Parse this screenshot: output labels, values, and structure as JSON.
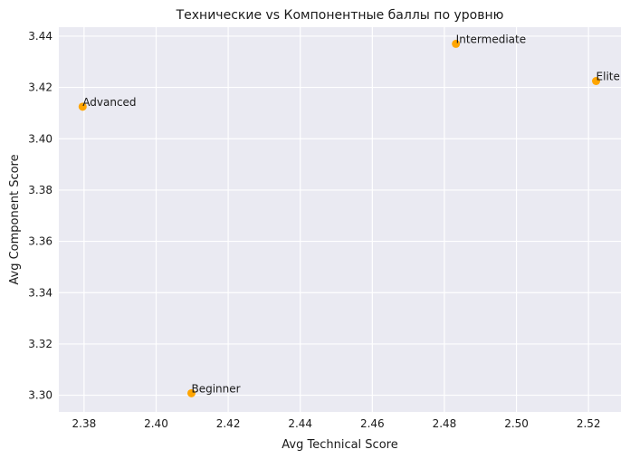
{
  "chart_data": {
    "type": "scatter",
    "title": "Технические vs Компонентные баллы по уровню",
    "xlabel": "Avg Technical Score",
    "ylabel": "Avg Component Score",
    "xlim": [
      2.373,
      2.529
    ],
    "ylim": [
      3.2935,
      3.4435
    ],
    "xticks": [
      "2.38",
      "2.40",
      "2.42",
      "2.44",
      "2.46",
      "2.48",
      "2.50",
      "2.52"
    ],
    "yticks": [
      "3.30",
      "3.32",
      "3.34",
      "3.36",
      "3.38",
      "3.40",
      "3.42",
      "3.44"
    ],
    "grid": true,
    "marker_color": "#ffa500",
    "background_color": "#eaeaf2",
    "points": [
      {
        "label": "Advanced",
        "x": 2.3796,
        "y": 3.4125
      },
      {
        "label": "Beginner",
        "x": 2.4098,
        "y": 3.3008
      },
      {
        "label": "Intermediate",
        "x": 2.4832,
        "y": 3.437
      },
      {
        "label": "Elite",
        "x": 2.5221,
        "y": 3.4225
      }
    ]
  }
}
